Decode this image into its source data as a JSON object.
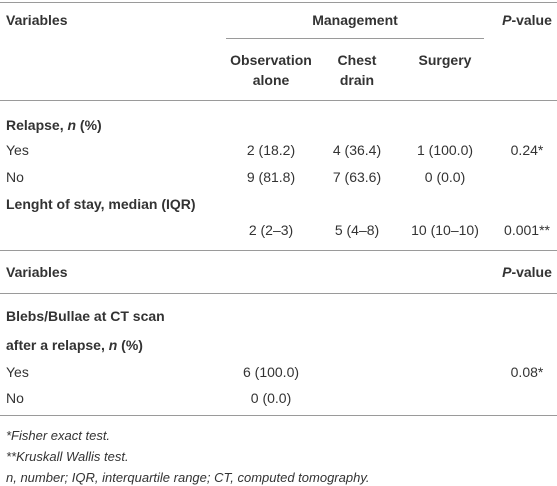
{
  "header": {
    "variables": "Variables",
    "management": "Management",
    "p_value": [
      "P",
      "-value"
    ],
    "columns": [
      [
        "Observation",
        "alone"
      ],
      [
        "Chest",
        "drain"
      ],
      [
        "Surgery"
      ]
    ]
  },
  "section1": {
    "title": [
      "Relapse, ",
      "n",
      " (%)"
    ],
    "rows": [
      {
        "label": "Yes",
        "cells": [
          "2 (18.2)",
          "4 (36.4)",
          "1 (100.0)"
        ],
        "p": "0.24*"
      },
      {
        "label": "No",
        "cells": [
          "9 (81.8)",
          "7 (63.6)",
          "0 (0.0)"
        ]
      }
    ],
    "los": {
      "label": "Lenght of stay, median (IQR)",
      "cells": [
        "2 (2–3)",
        "5 (4–8)",
        "10 (10–10)"
      ],
      "p": "0.001**"
    }
  },
  "header2": {
    "variables": "Variables",
    "p_value": [
      "P",
      "-value"
    ]
  },
  "section2": {
    "title": [
      [
        "Blebs/Bullae at CT scan"
      ],
      [
        "after a relapse, ",
        "n",
        " (%)"
      ]
    ],
    "rows": [
      {
        "label": "Yes",
        "cell": "6 (100.0)",
        "p": "0.08*"
      },
      {
        "label": "No",
        "cell": "0 (0.0)"
      }
    ]
  },
  "footnotes": [
    "*Fisher exact test.",
    "**Kruskall Wallis test.",
    "n, number; IQR, interquartile range; CT, computed tomography."
  ]
}
